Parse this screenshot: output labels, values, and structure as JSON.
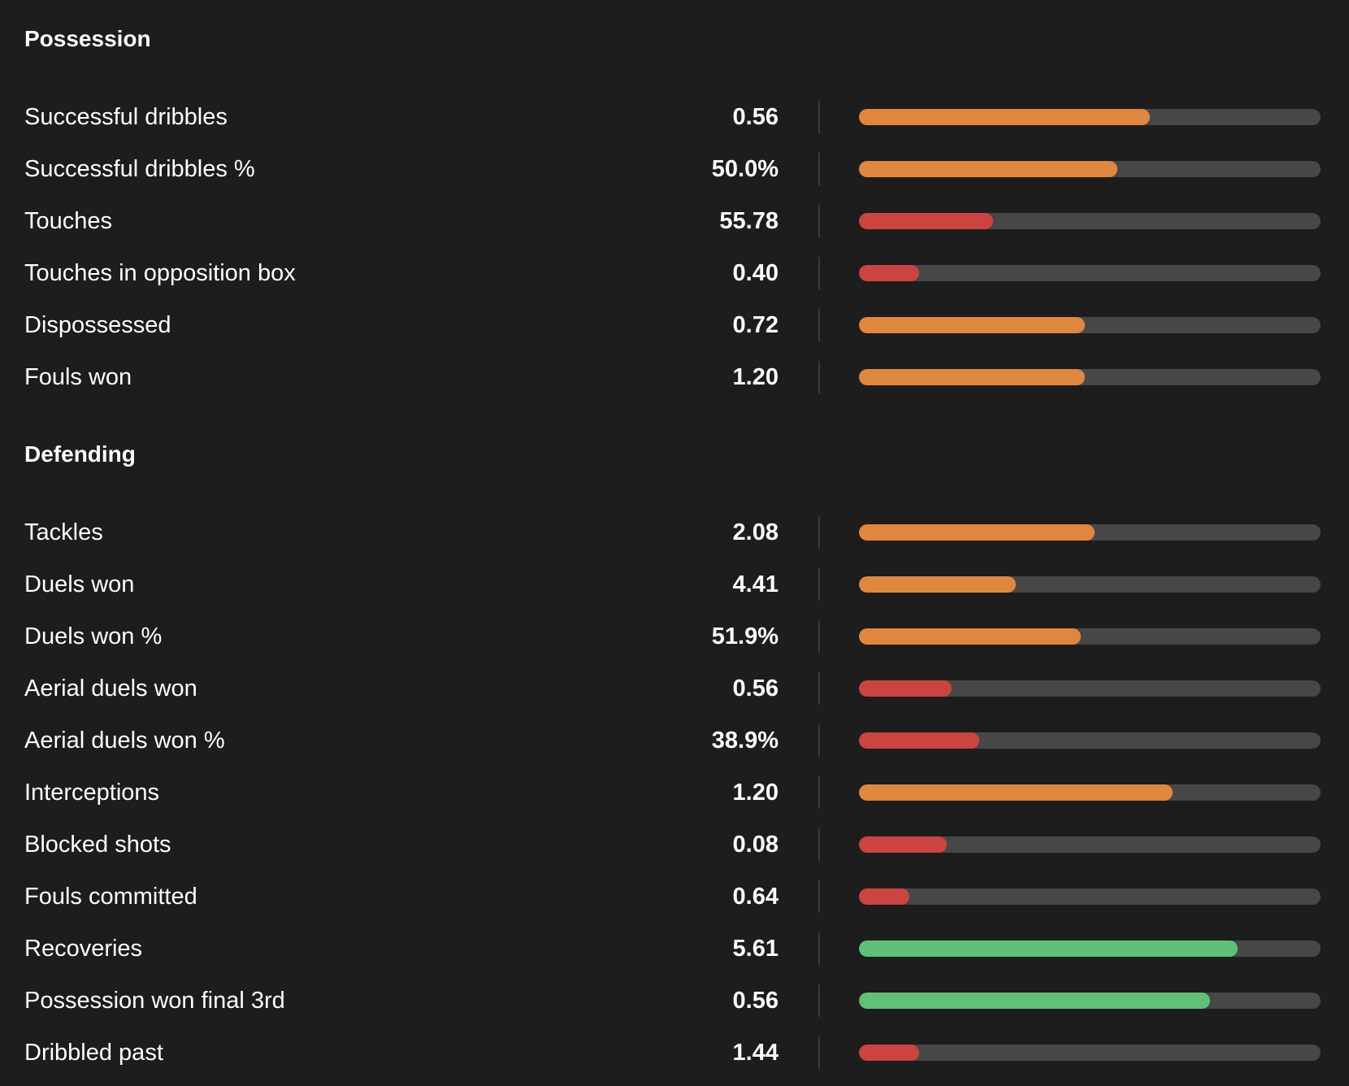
{
  "colors": {
    "high": "#5fc177",
    "mid": "#e0873e",
    "low": "#cc4440"
  },
  "sections": [
    {
      "title": "Possession",
      "rows": [
        {
          "label": "Successful dribbles",
          "value": "0.56",
          "percentile": 0.63,
          "level": "mid"
        },
        {
          "label": "Successful dribbles %",
          "value": "50.0%",
          "percentile": 0.56,
          "level": "mid"
        },
        {
          "label": "Touches",
          "value": "55.78",
          "percentile": 0.29,
          "level": "low"
        },
        {
          "label": "Touches in opposition box",
          "value": "0.40",
          "percentile": 0.13,
          "level": "low"
        },
        {
          "label": "Dispossessed",
          "value": "0.72",
          "percentile": 0.49,
          "level": "mid"
        },
        {
          "label": "Fouls won",
          "value": "1.20",
          "percentile": 0.49,
          "level": "mid"
        }
      ]
    },
    {
      "title": "Defending",
      "rows": [
        {
          "label": "Tackles",
          "value": "2.08",
          "percentile": 0.51,
          "level": "mid"
        },
        {
          "label": "Duels won",
          "value": "4.41",
          "percentile": 0.34,
          "level": "mid"
        },
        {
          "label": "Duels won %",
          "value": "51.9%",
          "percentile": 0.48,
          "level": "mid"
        },
        {
          "label": "Aerial duels won",
          "value": "0.56",
          "percentile": 0.2,
          "level": "low"
        },
        {
          "label": "Aerial duels won %",
          "value": "38.9%",
          "percentile": 0.26,
          "level": "low"
        },
        {
          "label": "Interceptions",
          "value": "1.20",
          "percentile": 0.68,
          "level": "mid"
        },
        {
          "label": "Blocked shots",
          "value": "0.08",
          "percentile": 0.19,
          "level": "low"
        },
        {
          "label": "Fouls committed",
          "value": "0.64",
          "percentile": 0.11,
          "level": "low"
        },
        {
          "label": "Recoveries",
          "value": "5.61",
          "percentile": 0.82,
          "level": "high"
        },
        {
          "label": "Possession won final 3rd",
          "value": "0.56",
          "percentile": 0.76,
          "level": "high"
        },
        {
          "label": "Dribbled past",
          "value": "1.44",
          "percentile": 0.13,
          "level": "low"
        }
      ]
    }
  ]
}
